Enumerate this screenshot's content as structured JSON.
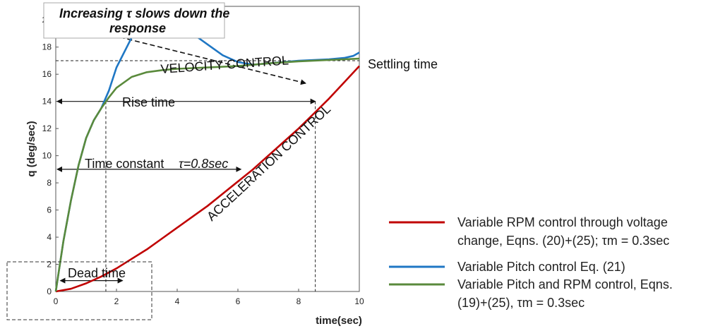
{
  "chart_data": {
    "type": "line",
    "xlabel": "time(sec)",
    "ylabel": "q (deg/sec)",
    "xlim": [
      0,
      10
    ],
    "ylim": [
      0,
      21
    ],
    "x_ticks": [
      0,
      2,
      4,
      6,
      8,
      10
    ],
    "y_ticks": [
      0,
      2,
      4,
      6,
      8,
      10,
      12,
      14,
      16,
      18,
      20
    ],
    "grid": false,
    "legend_position": "bottom-right outside plot",
    "series": [
      {
        "name": "Variable RPM control through voltage change, Eqns. (20)+(25); τm = 0.3sec",
        "name_line2": "change, Eqns. (20)+(25); τm = 0.3sec",
        "name_line1": "Variable RPM control through voltage",
        "color": "#c00000",
        "x": [
          0,
          0.5,
          1,
          1.5,
          2,
          2.5,
          3,
          3.5,
          4,
          4.5,
          5,
          5.5,
          6,
          6.5,
          7,
          7.5,
          8,
          8.5,
          9,
          9.5,
          10
        ],
        "y": [
          0,
          0.2,
          0.6,
          1.1,
          1.7,
          2.4,
          3.1,
          3.9,
          4.7,
          5.5,
          6.3,
          7.2,
          8.1,
          9.0,
          10.0,
          11.0,
          12.0,
          13.1,
          14.2,
          15.4,
          16.6
        ]
      },
      {
        "name": "Variable Pitch control Eq. (21)",
        "color": "#1f77c4",
        "x": [
          0,
          0.25,
          0.5,
          0.75,
          1,
          1.25,
          1.5,
          1.75,
          2,
          2.5,
          3,
          3.5,
          3.75,
          4,
          4.5,
          5,
          5.5,
          6,
          6.5,
          7,
          7.5,
          8,
          8.5,
          9,
          9.5,
          9.8,
          10
        ],
        "y": [
          0,
          3.7,
          6.7,
          9.3,
          11.3,
          12.6,
          13.5,
          14.8,
          16.5,
          18.7,
          19.6,
          20.0,
          20.0,
          19.8,
          19.0,
          18.2,
          17.4,
          16.9,
          16.7,
          16.8,
          16.9,
          17.0,
          17.05,
          17.1,
          17.2,
          17.35,
          17.6
        ]
      },
      {
        "name": "Variable Pitch and RPM control, Eqns. (19)+(25), τm = 0.3sec",
        "name_line1": "Variable Pitch and RPM control, Eqns.",
        "name_line2": "(19)+(25), τm = 0.3sec",
        "color": "#5a8a3c",
        "x": [
          0,
          0.25,
          0.5,
          0.75,
          1,
          1.25,
          1.5,
          1.75,
          2,
          2.5,
          3,
          3.5,
          4,
          5,
          6,
          7,
          8,
          9,
          10
        ],
        "y": [
          0,
          3.7,
          6.7,
          9.3,
          11.3,
          12.6,
          13.5,
          14.3,
          15.0,
          15.8,
          16.15,
          16.3,
          16.4,
          16.5,
          16.6,
          16.8,
          16.95,
          17.05,
          17.15
        ]
      }
    ],
    "annotations": {
      "settling_time": "Settling time",
      "velocity_control": "VELOCITY CONTROL",
      "acceleration_control": "ACCELERATION CONTROL",
      "rise_time": "Rise time",
      "time_constant": "Time constant",
      "time_constant_formula": "τ=0.8sec",
      "dead_time": "Dead time",
      "increasing_tau_line1": "Increasing τ slows down the",
      "increasing_tau_line2": "response"
    },
    "reference_values": {
      "settling_level": 17,
      "rise_level": 14,
      "time_constant_level": 9,
      "rise_time_end": 1.65,
      "settling_time_end": 8.55,
      "time_constant_end": 6.1,
      "dead_time_start": 0.15,
      "dead_time_end": 2.2
    }
  }
}
